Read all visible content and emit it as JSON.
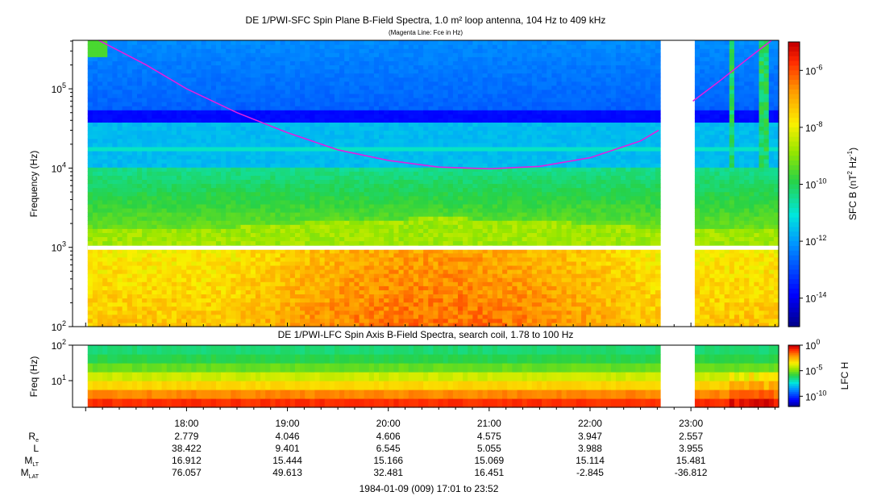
{
  "chart_data": [
    {
      "type": "heatmap",
      "title": "DE 1/PWI-SFC  Spin Plane B-Field Spectra, 1.0 m² loop antenna, 104 Hz to 409 kHz",
      "subtitle": "(Magenta Line: Fce in Hz)",
      "ylabel": "Frequency (Hz)",
      "yscale": "log",
      "ylim": [
        100,
        409000
      ],
      "ytick_values": [
        100,
        1000,
        10000,
        100000
      ],
      "ytick_labels": [
        {
          "base": "10",
          "exp": "2"
        },
        {
          "base": "10",
          "exp": "3"
        },
        {
          "base": "10",
          "exp": "4"
        },
        {
          "base": "10",
          "exp": "5"
        }
      ],
      "xlim_hours": [
        16.87,
        23.87
      ],
      "data_start_hour": 17.02,
      "data_gaps_hours": [
        [
          22.72,
          23.02
        ]
      ],
      "colorbar": {
        "label": "SFC B (nT",
        "label_exp1": "2",
        "label_mid": " Hz",
        "label_exp2": "-1",
        "label_end": ")",
        "scale": "log",
        "range_log10": [
          -15,
          -5
        ],
        "ticks": [
          {
            "value": -6,
            "base": "10",
            "exp": "-6"
          },
          {
            "value": -8,
            "base": "10",
            "exp": "-8"
          },
          {
            "value": -10,
            "base": "10",
            "exp": "-10"
          },
          {
            "value": -12,
            "base": "10",
            "exp": "-12"
          },
          {
            "value": -14,
            "base": "10",
            "exp": "-14"
          }
        ]
      },
      "fce_line": {
        "name": "Fce in Hz",
        "color": "#e020e0",
        "segments": [
          {
            "hours": [
              17.13,
              17.6,
              18.0,
              18.5,
              19.0,
              19.5,
              20.0,
              20.5,
              21.0,
              21.5,
              22.0,
              22.5,
              22.68
            ],
            "hz": [
              409000,
              200000,
              100000,
              50000,
              28000,
              17000,
              12500,
              10300,
              9800,
              10500,
              13500,
              22000,
              30000
            ]
          },
          {
            "hours": [
              23.02,
              23.3,
              23.6,
              23.8
            ],
            "hz": [
              70000,
              130000,
              260000,
              409000
            ]
          }
        ]
      }
    },
    {
      "type": "heatmap",
      "title": "DE 1/PWI-LFC  Spin Axis B-Field Spectra, search coil, 1.78 to 100 Hz",
      "ylabel": "Freq (Hz)",
      "yscale": "log",
      "ylim": [
        1.78,
        100
      ],
      "ytick_values": [
        10,
        100
      ],
      "ytick_labels": [
        {
          "base": "10",
          "exp": "1"
        },
        {
          "base": "10",
          "exp": "2"
        }
      ],
      "colorbar": {
        "label": "LFC H",
        "scale": "log",
        "range_log10": [
          -12,
          0
        ],
        "ticks": [
          {
            "value": 0,
            "base": "10",
            "exp": "0"
          },
          {
            "value": -5,
            "base": "10",
            "exp": "-5"
          },
          {
            "value": -10,
            "base": "10",
            "exp": "-10"
          }
        ]
      }
    }
  ],
  "x_axis": {
    "ticks": [
      {
        "hour": 18,
        "label": "18:00"
      },
      {
        "hour": 19,
        "label": "19:00"
      },
      {
        "hour": 20,
        "label": "20:00"
      },
      {
        "hour": 21,
        "label": "21:00"
      },
      {
        "hour": 22,
        "label": "22:00"
      },
      {
        "hour": 23,
        "label": "23:00"
      }
    ],
    "ephemeris": [
      {
        "label": "R",
        "sub": "e",
        "values": [
          "2.779",
          "4.046",
          "4.606",
          "4.575",
          "3.947",
          "2.557"
        ]
      },
      {
        "label": "L",
        "sub": "",
        "values": [
          "38.422",
          "9.401",
          "6.545",
          "5.055",
          "3.988",
          "3.955"
        ]
      },
      {
        "label": "M",
        "sub": "LT",
        "values": [
          "16.912",
          "15.444",
          "15.166",
          "15.069",
          "15.114",
          "15.481"
        ]
      },
      {
        "label": "M",
        "sub": "LAT",
        "values": [
          "76.057",
          "49.613",
          "32.481",
          "16.451",
          "-2.845",
          "-36.812"
        ]
      }
    ],
    "caption": "1984-01-09 (009) 17:01 to 23:52"
  }
}
